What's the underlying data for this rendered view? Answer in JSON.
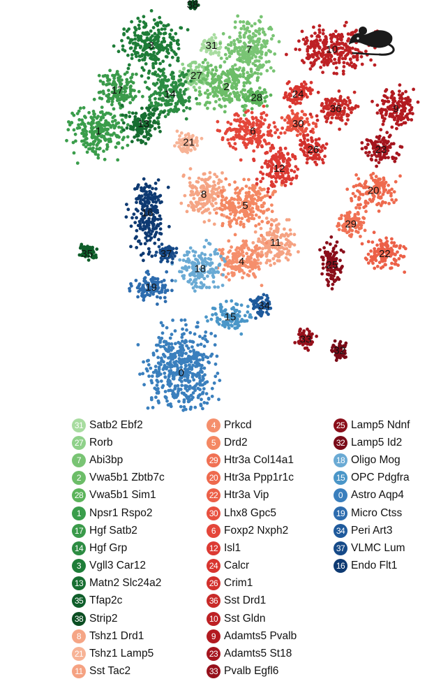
{
  "chart_data": {
    "type": "scatter",
    "title": "",
    "xlabel": "",
    "ylabel": "",
    "grid": false,
    "legend_placement": "bottom",
    "xlim": [
      0,
      100
    ],
    "ylim": [
      0,
      100
    ],
    "icon": "mouse-icon",
    "clusters": [
      {
        "id": "31",
        "label": "Satb2 Ebf2",
        "color": "#a8dca0",
        "group": "green",
        "center": [
          45,
          93
        ]
      },
      {
        "id": "27",
        "label": "Rorb",
        "color": "#8fd18a",
        "group": "green",
        "center": [
          41,
          85
        ]
      },
      {
        "id": "7",
        "label": "Abi3bp",
        "color": "#79c474",
        "group": "green",
        "center": [
          55,
          92
        ]
      },
      {
        "id": "2",
        "label": "Vwa5b1 Zbtb7c",
        "color": "#6cbd68",
        "group": "green",
        "center": [
          49,
          82
        ]
      },
      {
        "id": "28",
        "label": "Vwa5b1 Sim1",
        "color": "#5cb45b",
        "group": "green",
        "center": [
          57,
          79
        ]
      },
      {
        "id": "1",
        "label": "Npsr1 Rspo2",
        "color": "#3a9d4b",
        "group": "green",
        "center": [
          15,
          70
        ]
      },
      {
        "id": "17",
        "label": "Hgf Satb2",
        "color": "#3a9a4a",
        "group": "green",
        "center": [
          20,
          81
        ]
      },
      {
        "id": "14",
        "label": "Hgf Grp",
        "color": "#2c8c42",
        "group": "green",
        "center": [
          34,
          80
        ]
      },
      {
        "id": "3",
        "label": "Vgll3 Car12",
        "color": "#1e7d38",
        "group": "green",
        "center": [
          29,
          93
        ]
      },
      {
        "id": "13",
        "label": "Matn2 Slc24a2",
        "color": "#176e31",
        "group": "green",
        "center": [
          27,
          72
        ]
      },
      {
        "id": "35",
        "label": "Tfap2c",
        "color": "#0f5e2a",
        "group": "green",
        "center": [
          12,
          37
        ]
      },
      {
        "id": "38",
        "label": "Strip2",
        "color": "#0b4e22",
        "group": "green",
        "center": [
          40,
          104
        ]
      },
      {
        "id": "8",
        "label": "Tshz1 Drd1",
        "color": "#f5a585",
        "group": "red",
        "center": [
          43,
          53
        ]
      },
      {
        "id": "21",
        "label": "Tshz1 Lamp5",
        "color": "#f7b396",
        "group": "red",
        "center": [
          39,
          67
        ]
      },
      {
        "id": "11",
        "label": "Sst Tac2",
        "color": "#f5a282",
        "group": "red",
        "center": [
          62,
          40
        ]
      },
      {
        "id": "4",
        "label": "Prkcd",
        "color": "#f58f6c",
        "group": "red",
        "center": [
          53,
          35
        ]
      },
      {
        "id": "5",
        "label": "Drd2",
        "color": "#f48863",
        "group": "red",
        "center": [
          54,
          50
        ]
      },
      {
        "id": "29",
        "label": "Htr3a Col14a1",
        "color": "#f07154",
        "group": "red",
        "center": [
          82,
          45
        ]
      },
      {
        "id": "20",
        "label": "Htr3a Ppp1r1c",
        "color": "#ee6a4e",
        "group": "red",
        "center": [
          88,
          54
        ]
      },
      {
        "id": "22",
        "label": "Htr3a Vip",
        "color": "#ec6048",
        "group": "red",
        "center": [
          91,
          37
        ]
      },
      {
        "id": "30",
        "label": "Lhx8 Gpc5",
        "color": "#e8503f",
        "group": "red",
        "center": [
          68,
          72
        ]
      },
      {
        "id": "6",
        "label": "Foxp2 Nxph2",
        "color": "#e4463a",
        "group": "red",
        "center": [
          56,
          70
        ]
      },
      {
        "id": "12",
        "label": "Isl1",
        "color": "#dc3a33",
        "group": "red",
        "center": [
          63,
          60
        ]
      },
      {
        "id": "24",
        "label": "Calcr",
        "color": "#d8352f",
        "group": "red",
        "center": [
          68,
          80
        ]
      },
      {
        "id": "26",
        "label": "Crim1",
        "color": "#d2302c",
        "group": "red",
        "center": [
          72,
          65
        ]
      },
      {
        "id": "36",
        "label": "Sst Drd1",
        "color": "#c82a28",
        "group": "red",
        "center": [
          78,
          76
        ]
      },
      {
        "id": "10",
        "label": "Sst Gldn",
        "color": "#bd2024",
        "group": "red",
        "center": [
          77,
          92
        ]
      },
      {
        "id": "9",
        "label": "Adamts5 Pvalb",
        "color": "#b21a20",
        "group": "red",
        "center": [
          94,
          76
        ]
      },
      {
        "id": "23",
        "label": "Adamts5 St18",
        "color": "#a5151e",
        "group": "red",
        "center": [
          90,
          65
        ]
      },
      {
        "id": "33",
        "label": "Pvalb Egfl6",
        "color": "#96101b",
        "group": "red",
        "center": [
          70,
          14
        ]
      },
      {
        "id": "25",
        "label": "Lamp5 Ndnf",
        "color": "#8a0e1a",
        "group": "red",
        "center": [
          77,
          34
        ]
      },
      {
        "id": "32",
        "label": "Lamp5 Id2",
        "color": "#7a0b18",
        "group": "red",
        "center": [
          79,
          11
        ]
      },
      {
        "id": "18",
        "label": "Oligo Mog",
        "color": "#6aaad4",
        "group": "blue",
        "center": [
          42,
          33
        ]
      },
      {
        "id": "15",
        "label": "OPC Pdgfra",
        "color": "#4a96c8",
        "group": "blue",
        "center": [
          50,
          20
        ]
      },
      {
        "id": "0",
        "label": "Astro Aqp4",
        "color": "#3a7fbd",
        "group": "blue",
        "center": [
          37,
          5
        ]
      },
      {
        "id": "19",
        "label": "Micro Ctss",
        "color": "#2d6cae",
        "group": "blue",
        "center": [
          29,
          28
        ]
      },
      {
        "id": "34",
        "label": "Peri Art3",
        "color": "#1f5a9c",
        "group": "blue",
        "center": [
          59,
          23
        ]
      },
      {
        "id": "37",
        "label": "VLMC Lum",
        "color": "#164a88",
        "group": "blue",
        "center": [
          33,
          37
        ]
      },
      {
        "id": "16",
        "label": "Endo Flt1",
        "color": "#0e3a72",
        "group": "blue",
        "center": [
          28,
          48
        ]
      }
    ]
  }
}
